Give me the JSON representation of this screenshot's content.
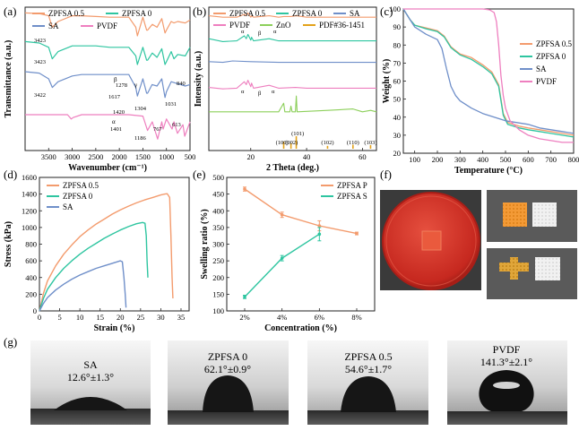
{
  "chart_data": [
    {
      "panel": "(a)",
      "type": "line",
      "title": "",
      "xlabel": "Wavenumber (cm⁻¹)",
      "ylabel": "Transmittance (a.u.)",
      "xlim": [
        4000,
        500
      ],
      "xticks": [
        3500,
        3000,
        2500,
        2000,
        1500,
        1000,
        500
      ],
      "legend": [
        "ZPFSA 0.5",
        "ZPFSA 0",
        "SA",
        "PVDF"
      ],
      "legend_position": "top",
      "series": [
        {
          "name": "ZPFSA 0.5",
          "color": "#f39b6d",
          "x": [
            4000,
            3700,
            3500,
            3423,
            3300,
            3000,
            2800,
            2500,
            2200,
            2000,
            1800,
            1650,
            1617,
            1500,
            1420,
            1400,
            1300,
            1200,
            1100,
            1031,
            1000,
            900,
            840,
            760,
            600,
            500
          ],
          "y": [
            0.96,
            0.955,
            0.94,
            0.86,
            0.9,
            0.94,
            0.94,
            0.935,
            0.93,
            0.93,
            0.93,
            0.86,
            0.8,
            0.93,
            0.84,
            0.84,
            0.88,
            0.86,
            0.92,
            0.82,
            0.84,
            0.9,
            0.89,
            0.9,
            0.89,
            0.91
          ]
        },
        {
          "name": "ZPFSA 0",
          "color": "#2ec5a0",
          "x": [
            4000,
            3700,
            3500,
            3423,
            3300,
            3000,
            2800,
            2500,
            2200,
            2000,
            1800,
            1650,
            1617,
            1500,
            1420,
            1400,
            1300,
            1200,
            1100,
            1031,
            1000,
            900,
            840,
            760,
            600,
            500
          ],
          "y": [
            0.76,
            0.75,
            0.72,
            0.64,
            0.69,
            0.73,
            0.73,
            0.73,
            0.72,
            0.72,
            0.72,
            0.66,
            0.6,
            0.72,
            0.63,
            0.63,
            0.68,
            0.65,
            0.71,
            0.6,
            0.62,
            0.69,
            0.64,
            0.67,
            0.66,
            0.72
          ]
        },
        {
          "name": "SA",
          "color": "#6f8fc9",
          "x": [
            4000,
            3700,
            3500,
            3422,
            3300,
            3000,
            2800,
            2500,
            2200,
            2000,
            1800,
            1650,
            1617,
            1500,
            1420,
            1400,
            1304,
            1200,
            1100,
            1031,
            1000,
            900,
            800,
            600,
            500
          ],
          "y": [
            0.55,
            0.54,
            0.5,
            0.44,
            0.48,
            0.52,
            0.53,
            0.53,
            0.53,
            0.53,
            0.53,
            0.44,
            0.38,
            0.5,
            0.4,
            0.4,
            0.46,
            0.45,
            0.5,
            0.37,
            0.41,
            0.48,
            0.47,
            0.45,
            0.46
          ]
        },
        {
          "name": "PVDF",
          "color": "#ee7fbf",
          "x": [
            4000,
            3700,
            3500,
            3300,
            3100,
            3020,
            2980,
            2800,
            2500,
            2200,
            2000,
            1800,
            1500,
            1401,
            1300,
            1186,
            1100,
            1070,
            1000,
            880,
            840,
            767,
            650,
            613,
            500
          ],
          "y": [
            0.25,
            0.25,
            0.25,
            0.25,
            0.25,
            0.22,
            0.23,
            0.25,
            0.25,
            0.25,
            0.25,
            0.25,
            0.24,
            0.14,
            0.2,
            0.08,
            0.2,
            0.15,
            0.22,
            0.15,
            0.2,
            0.12,
            0.18,
            0.1,
            0.2
          ]
        }
      ],
      "annotations": [
        "3423",
        "3423",
        "3422",
        "1617",
        "1278",
        "1304",
        "1031",
        "1420",
        "840",
        "1401",
        "1186",
        "767",
        "613",
        "α",
        "β",
        "γ"
      ]
    },
    {
      "panel": "(b)",
      "type": "line",
      "title": "",
      "xlabel": "2 Theta (deg.)",
      "ylabel": "Intensity (a.u.)",
      "xlim": [
        5,
        65
      ],
      "xticks": [
        20,
        40,
        60
      ],
      "legend": [
        "ZPFSA 0.5",
        "ZPFSA 0",
        "SA",
        "PVDF",
        "ZnO",
        "PDF#36-1451"
      ],
      "legend_position": "top",
      "series": [
        {
          "name": "ZPFSA 0.5",
          "color": "#f39b6d",
          "x": [
            5,
            10,
            15,
            17.7,
            18.4,
            19,
            20,
            20.3,
            21,
            26.6,
            30,
            31.8,
            34.4,
            36.3,
            40,
            50,
            56.6,
            60,
            65
          ],
          "y": [
            0.94,
            0.93,
            0.93,
            0.95,
            0.94,
            0.96,
            0.93,
            0.94,
            0.93,
            0.94,
            0.93,
            0.935,
            0.935,
            0.94,
            0.93,
            0.93,
            0.93,
            0.93,
            0.93
          ]
        },
        {
          "name": "ZPFSA 0",
          "color": "#2ec5a0",
          "x": [
            5,
            10,
            15,
            17.7,
            18.4,
            19,
            20,
            20.3,
            21,
            26.6,
            30,
            40,
            50,
            60,
            65
          ],
          "y": [
            0.78,
            0.76,
            0.765,
            0.8,
            0.78,
            0.81,
            0.77,
            0.79,
            0.765,
            0.78,
            0.765,
            0.765,
            0.765,
            0.765,
            0.765
          ]
        },
        {
          "name": "SA",
          "color": "#6f8fc9",
          "x": [
            5,
            10,
            13.5,
            20,
            30,
            40,
            50,
            60,
            65
          ],
          "y": [
            0.62,
            0.615,
            0.625,
            0.62,
            0.615,
            0.615,
            0.615,
            0.615,
            0.615
          ]
        },
        {
          "name": "PVDF",
          "color": "#ee7fbf",
          "x": [
            5,
            10,
            15,
            17.7,
            18.4,
            19,
            20,
            20.3,
            21,
            26.6,
            30,
            36,
            40,
            50,
            60,
            65
          ],
          "y": [
            0.44,
            0.43,
            0.435,
            0.48,
            0.46,
            0.49,
            0.445,
            0.47,
            0.435,
            0.455,
            0.435,
            0.44,
            0.435,
            0.435,
            0.435,
            0.435
          ]
        },
        {
          "name": "ZnO",
          "color": "#8ccf5a",
          "x": [
            5,
            30,
            31.8,
            32.2,
            34,
            34.4,
            34.8,
            36,
            36.3,
            36.6,
            47.5,
            56.6,
            60,
            62.9,
            65
          ],
          "y": [
            0.27,
            0.27,
            0.33,
            0.27,
            0.27,
            0.31,
            0.27,
            0.27,
            0.38,
            0.27,
            0.28,
            0.29,
            0.27,
            0.28,
            0.27
          ]
        }
      ],
      "reference_bars": {
        "name": "PDF#36-1451",
        "color": "#e3a21a",
        "positions": [
          31.8,
          34.4,
          36.3,
          47.5,
          56.6,
          62.9
        ],
        "heights": [
          0.57,
          0.44,
          1.0,
          0.23,
          0.32,
          0.29
        ]
      },
      "hkl_labels": [
        "(100)",
        "(002)",
        "(101)",
        "(102)",
        "(110)",
        "(103)"
      ],
      "annotations": [
        "α",
        "β",
        "α",
        "α",
        "β",
        "α"
      ]
    },
    {
      "panel": "(c)",
      "type": "line",
      "title": "",
      "xlabel": "Temperature (°C)",
      "ylabel": "Weight (%)",
      "xlim": [
        50,
        800
      ],
      "ylim": [
        20,
        100
      ],
      "xticks": [
        100,
        200,
        300,
        400,
        500,
        600,
        700,
        800
      ],
      "yticks": [
        20,
        30,
        40,
        50,
        60,
        70,
        80,
        90,
        100
      ],
      "legend": [
        "ZPFSA 0.5",
        "ZPFSA 0",
        "SA",
        "PVDF"
      ],
      "legend_position": "top-right",
      "series": [
        {
          "name": "ZPFSA 0.5",
          "color": "#f39b6d",
          "x": [
            50,
            80,
            100,
            150,
            200,
            230,
            260,
            300,
            350,
            400,
            440,
            470,
            490,
            510,
            560,
            600,
            650,
            700,
            750,
            800
          ],
          "y": [
            100,
            94,
            91,
            89.5,
            88,
            85,
            79,
            75,
            73,
            69,
            65,
            58,
            42,
            37,
            35,
            34,
            33,
            32,
            31,
            30
          ]
        },
        {
          "name": "ZPFSA 0",
          "color": "#2ec5a0",
          "x": [
            50,
            80,
            100,
            150,
            200,
            230,
            260,
            300,
            350,
            400,
            440,
            470,
            490,
            510,
            560,
            600,
            650,
            700,
            750,
            800
          ],
          "y": [
            100,
            94,
            91,
            89,
            87.5,
            84.5,
            78.5,
            74.5,
            72,
            68,
            64,
            57,
            41,
            36,
            34,
            33,
            32,
            31,
            30,
            29
          ]
        },
        {
          "name": "SA",
          "color": "#6f8fc9",
          "x": [
            50,
            80,
            100,
            150,
            200,
            220,
            240,
            260,
            280,
            300,
            350,
            400,
            500,
            550,
            600,
            650,
            700,
            750,
            800
          ],
          "y": [
            100,
            94,
            90,
            86,
            83,
            78,
            67,
            57,
            52,
            49,
            45,
            42,
            38,
            37,
            36,
            34,
            33,
            32,
            31
          ]
        },
        {
          "name": "PVDF",
          "color": "#ee7fbf",
          "x": [
            50,
            100,
            200,
            300,
            400,
            430,
            450,
            460,
            470,
            480,
            490,
            500,
            520,
            560,
            600,
            650,
            700,
            750,
            800
          ],
          "y": [
            100,
            100,
            100,
            100,
            100,
            99.5,
            98,
            93,
            80,
            63,
            52,
            45,
            38,
            33,
            30,
            28,
            27,
            26,
            26
          ]
        }
      ]
    },
    {
      "panel": "(d)",
      "type": "line",
      "title": "",
      "xlabel": "Strain (%)",
      "ylabel": "Stress (kPa)",
      "xlim": [
        0,
        37
      ],
      "ylim": [
        0,
        1600
      ],
      "xticks": [
        0,
        5,
        10,
        15,
        20,
        25,
        30,
        35
      ],
      "yticks": [
        0,
        200,
        400,
        600,
        800,
        1000,
        1200,
        1400,
        1600
      ],
      "legend": [
        "ZPFSA 0.5",
        "ZPFSA 0",
        "SA"
      ],
      "legend_position": "top-left",
      "series": [
        {
          "name": "ZPFSA 0.5",
          "color": "#f39b6d",
          "x": [
            0,
            1,
            2,
            4,
            6,
            8,
            10,
            12,
            14,
            16,
            18,
            20,
            22,
            24,
            26,
            28,
            30,
            31,
            31.6,
            32.2,
            32.5,
            32.8,
            33
          ],
          "y": [
            0,
            210,
            360,
            540,
            680,
            790,
            890,
            970,
            1040,
            1100,
            1160,
            1210,
            1255,
            1295,
            1330,
            1360,
            1390,
            1400,
            1405,
            1360,
            900,
            400,
            150
          ]
        },
        {
          "name": "ZPFSA 0",
          "color": "#2ec5a0",
          "x": [
            0,
            1,
            2,
            4,
            6,
            8,
            10,
            12,
            14,
            16,
            18,
            20,
            22,
            24,
            25.5,
            26.1,
            26.4,
            26.6,
            26.8
          ],
          "y": [
            0,
            150,
            260,
            400,
            510,
            600,
            680,
            750,
            810,
            870,
            920,
            970,
            1010,
            1045,
            1060,
            1050,
            900,
            600,
            400
          ]
        },
        {
          "name": "SA",
          "color": "#6f8fc9",
          "x": [
            0,
            1,
            2,
            4,
            6,
            8,
            10,
            12,
            14,
            16,
            18,
            20,
            20.5,
            20.9,
            21.2,
            21.4
          ],
          "y": [
            0,
            90,
            160,
            250,
            320,
            380,
            430,
            470,
            510,
            540,
            570,
            600,
            590,
            400,
            200,
            40
          ]
        }
      ]
    },
    {
      "panel": "(e)",
      "type": "line",
      "title": "",
      "xlabel": "Concentration (%)",
      "ylabel": "Swelling ratio (%)",
      "categories": [
        "2%",
        "4%",
        "6%",
        "8%"
      ],
      "ylim": [
        100,
        500
      ],
      "yticks": [
        100,
        150,
        200,
        250,
        300,
        350,
        400,
        450,
        500
      ],
      "legend": [
        "ZPFSA P",
        "ZPFSA S"
      ],
      "legend_position": "top-right",
      "series": [
        {
          "name": "ZPFSA P",
          "color": "#f39b6d",
          "values": [
            465,
            388,
            355,
            332
          ],
          "errors": [
            6,
            8,
            15,
            4
          ]
        },
        {
          "name": "ZPFSA S",
          "color": "#2ec5a0",
          "values": [
            142,
            258,
            330,
            null
          ],
          "errors": [
            5,
            8,
            20,
            0
          ]
        }
      ]
    }
  ],
  "panels": {
    "a": {
      "label": "(a)"
    },
    "b": {
      "label": "(b)"
    },
    "c": {
      "label": "(c)"
    },
    "d": {
      "label": "(d)"
    },
    "e": {
      "label": "(e)"
    },
    "f": {
      "label": "(f)"
    },
    "g": {
      "label": "(g)"
    }
  },
  "contact_angles": [
    {
      "name": "SA",
      "value": "12.6°±1.3°"
    },
    {
      "name": "ZPFSA 0",
      "value": "62.1°±0.9°"
    },
    {
      "name": "ZPFSA 0.5",
      "value": "54.6°±1.7°"
    },
    {
      "name": "PVDF",
      "value": "141.3°±2.1°"
    }
  ],
  "colors": {
    "orange": "#f39b6d",
    "teal": "#2ec5a0",
    "blue": "#6f8fc9",
    "pink": "#ee7fbf",
    "green": "#8ccf5a",
    "gold": "#e3a21a",
    "dish_red": "#c6281f"
  }
}
